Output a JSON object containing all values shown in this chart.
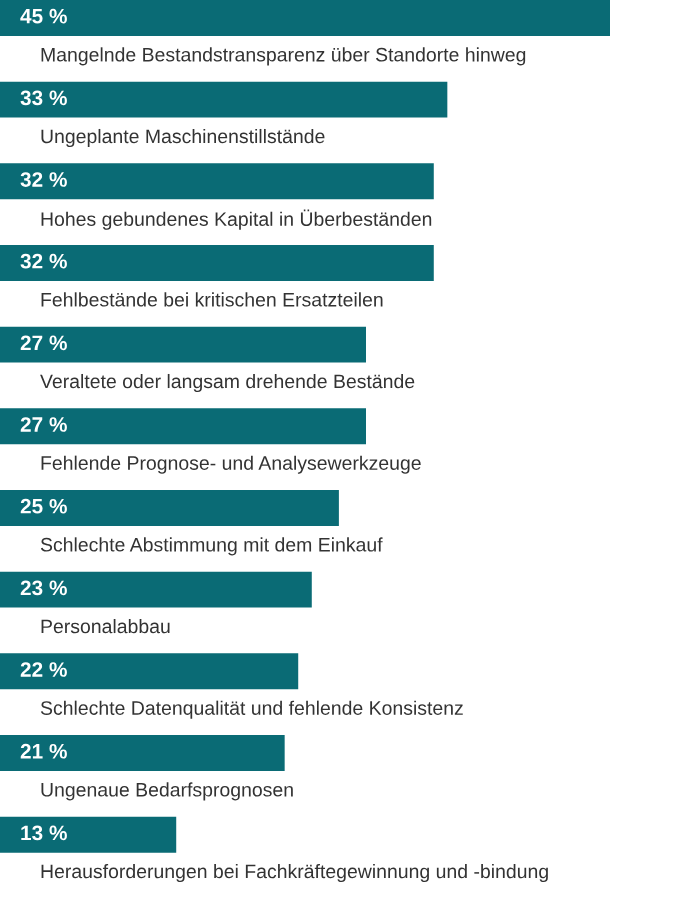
{
  "chart_data": {
    "type": "bar",
    "orientation": "horizontal",
    "color": "#0a6b75",
    "categories": [
      "Mangelnde Bestandstransparenz über Standorte hinweg",
      "Ungeplante Maschinenstillstände",
      "Hohes gebundenes Kapital in Überbeständen",
      "Fehlbestände bei kritischen Ersatzteilen",
      "Veraltete oder langsam drehende Bestände",
      "Fehlende Prognose- und Analysewerkzeuge",
      "Schlechte Abstimmung mit dem Einkauf",
      "Personalabbau",
      "Schlechte Datenqualität und fehlende Konsistenz",
      "Ungenaue Bedarfsprognosen",
      "Herausforderungen bei Fachkräftegewinnung und -bindung"
    ],
    "values": [
      45,
      33,
      32,
      32,
      27,
      27,
      25,
      23,
      22,
      21,
      13
    ],
    "value_labels": [
      "45 %",
      "33 %",
      "32 %",
      "32 %",
      "27 %",
      "27 %",
      "25 %",
      "23 %",
      "22 %",
      "21 %",
      "13 %"
    ]
  }
}
